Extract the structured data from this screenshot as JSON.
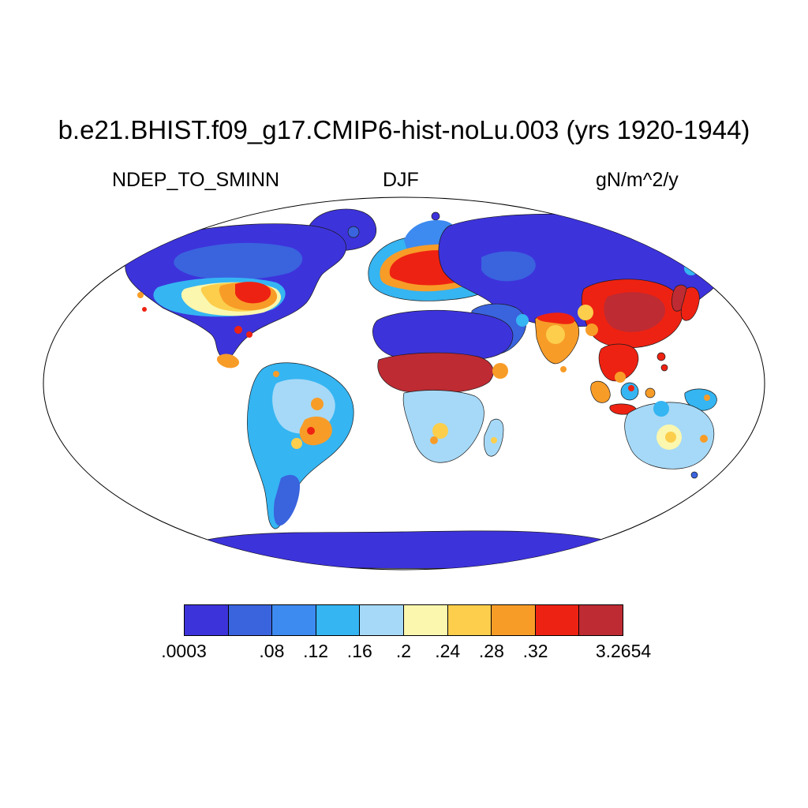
{
  "header": {
    "title": "b.e21.BHIST.f09_g17.CMIP6-hist-noLu.003 (yrs 1920-1944)",
    "left_subtitle": "NDEP_TO_SMINN",
    "center_subtitle": "DJF",
    "right_subtitle": "gN/m^2/y"
  },
  "chart_data": {
    "type": "heatmap",
    "title": "b.e21.BHIST.f09_g17.CMIP6-hist-noLu.003 (yrs 1920-1944)",
    "variable": "NDEP_TO_SMINN",
    "season": "DJF",
    "units": "gN/m^2/y",
    "projection": "Robinson global map, filled contours over land only",
    "colorbar": {
      "orientation": "horizontal",
      "min": 0.0003,
      "max": 3.2654,
      "colors": [
        "#3D33DB",
        "#3A63DE",
        "#3D8AF0",
        "#35B5F2",
        "#A6D9F7",
        "#FBF7AE",
        "#FCCE4C",
        "#F89C28",
        "#EE2212",
        "#BE2B33"
      ],
      "ticks": [
        {
          "label": ".0003",
          "boundary": 0
        },
        {
          "label": ".08",
          "boundary": 2
        },
        {
          "label": ".12",
          "boundary": 3
        },
        {
          "label": ".16",
          "boundary": 4
        },
        {
          "label": ".2",
          "boundary": 5
        },
        {
          "label": ".24",
          "boundary": 6
        },
        {
          "label": ".28",
          "boundary": 7
        },
        {
          "label": ".32",
          "boundary": 8
        },
        {
          "label": "3.2654",
          "boundary": 10
        }
      ]
    },
    "regions": [
      {
        "region": "Arctic Canada, Greenland, Siberia, Sahara, Arabia, Antarctica",
        "approx_value": "< 0.08 gN/m^2/y (deep blue)"
      },
      {
        "region": "Central and Western Europe",
        "approx_value": "> 0.32 gN/m^2/y (red core, orange fringe)"
      },
      {
        "region": "Eastern United States / Great Lakes",
        "approx_value": "0.24 - > 0.32 gN/m^2/y (yellow-orange-red)"
      },
      {
        "region": "Eastern China, Korea, Japan",
        "approx_value": "> 0.32 gN/m^2/y (red to dark red)"
      },
      {
        "region": "Equatorial Africa band",
        "approx_value": "> 0.32 gN/m^2/y (dark red)"
      },
      {
        "region": "India and Southeast Asia",
        "approx_value": "0.2 - > 0.32 gN/m^2/y (yellow to red)"
      },
      {
        "region": "Amazon / Brazil",
        "approx_value": "0.12 - 0.28 gN/m^2/y (cyan with orange patches)"
      },
      {
        "region": "Southern Africa and Australia",
        "approx_value": "0.12 - 0.24 gN/m^2/y (pale blue with pale yellow centres)"
      },
      {
        "region": "Gulf coast, Cuba, west coast USA",
        "approx_value": "small > 0.28 hotspots (red dots)"
      }
    ]
  }
}
